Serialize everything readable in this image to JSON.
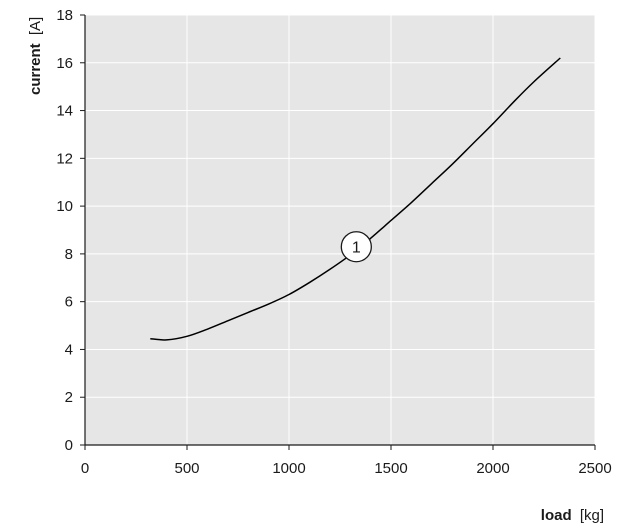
{
  "chart_data": {
    "type": "line",
    "title": "",
    "xlabel": {
      "bold": "load",
      "unit": "[kg]"
    },
    "ylabel": {
      "bold": "current",
      "unit": "[A]"
    },
    "xlim": [
      0,
      2500
    ],
    "ylim": [
      0,
      18
    ],
    "xticks": [
      0,
      500,
      1000,
      1500,
      2000,
      2500
    ],
    "yticks": [
      0,
      2,
      4,
      6,
      8,
      10,
      12,
      14,
      16,
      18
    ],
    "grid": true,
    "series": [
      {
        "x": [
          320,
          400,
          500,
          600,
          700,
          800,
          900,
          1000,
          1100,
          1200,
          1300,
          1400,
          1500,
          1600,
          1700,
          1800,
          1900,
          2000,
          2100,
          2200,
          2330
        ],
        "y": [
          4.45,
          4.4,
          4.55,
          4.85,
          5.2,
          5.55,
          5.9,
          6.3,
          6.8,
          7.35,
          7.95,
          8.65,
          9.4,
          10.15,
          10.95,
          11.75,
          12.6,
          13.45,
          14.35,
          15.2,
          16.2
        ]
      }
    ],
    "annotations": [
      {
        "text": "1",
        "x": 1330,
        "y": 8.3
      }
    ],
    "colors": {
      "plot_bg": "#e6e6e6",
      "grid": "#ffffff",
      "line": "#000000",
      "axis": "#1a1a1a"
    }
  }
}
